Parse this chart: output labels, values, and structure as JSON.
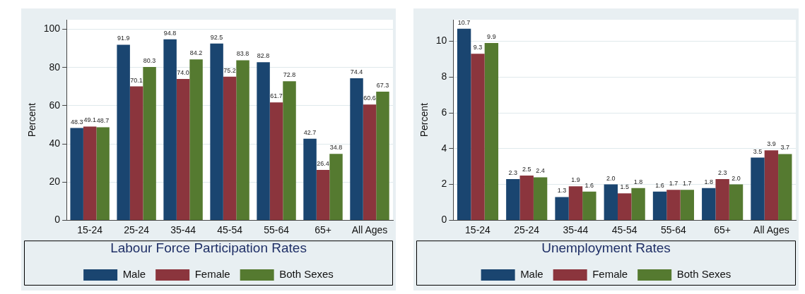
{
  "chart_data": [
    {
      "type": "bar",
      "legend_title": "Labour Force Participation Rates",
      "ylabel": "Percent",
      "categories": [
        "15-24",
        "25-24",
        "35-44",
        "45-54",
        "55-64",
        "65+",
        "All Ages"
      ],
      "ylim": [
        0,
        105
      ],
      "yticks": [
        0,
        20,
        40,
        60,
        80,
        100
      ],
      "grid": "y",
      "legend": "bottom",
      "series": [
        {
          "name": "Male",
          "color": "#1a4570",
          "values": [
            48.3,
            91.9,
            94.8,
            92.5,
            82.8,
            42.7,
            74.4
          ],
          "value_labels": [
            "48.3",
            "91.9",
            "94.8",
            "92.5",
            "82.8",
            "42.7",
            "74.4"
          ]
        },
        {
          "name": "Female",
          "color": "#8b353d",
          "values": [
            49.1,
            70.1,
            74.0,
            75.2,
            61.7,
            26.4,
            60.6
          ],
          "value_labels": [
            "49.1",
            "70.1",
            "74.0",
            "75.2",
            "61.7",
            "26.4",
            "60.6"
          ]
        },
        {
          "name": "Both Sexes",
          "color": "#557a30",
          "values": [
            48.7,
            80.3,
            84.2,
            83.8,
            72.8,
            34.8,
            67.3
          ],
          "value_labels": [
            "48.7",
            "80.3",
            "84.2",
            "83.8",
            "72.8",
            "34.8",
            "67.3"
          ]
        }
      ]
    },
    {
      "type": "bar",
      "legend_title": "Unemployment Rates",
      "ylabel": "Percent",
      "categories": [
        "15-24",
        "25-24",
        "35-44",
        "45-54",
        "55-64",
        "65+",
        "All Ages"
      ],
      "ylim": [
        0,
        11.2
      ],
      "yticks": [
        0,
        2,
        4,
        6,
        8,
        10
      ],
      "grid": "y",
      "legend": "bottom",
      "series": [
        {
          "name": "Male",
          "color": "#1a4570",
          "values": [
            10.7,
            2.3,
            1.3,
            2.0,
            1.6,
            1.8,
            3.5
          ],
          "value_labels": [
            "10.7",
            "2.3",
            "1.3",
            "2.0",
            "1.6",
            "1.8",
            "3.5"
          ]
        },
        {
          "name": "Female",
          "color": "#8b353d",
          "values": [
            9.3,
            2.5,
            1.9,
            1.5,
            1.7,
            2.3,
            3.9
          ],
          "value_labels": [
            "9.3",
            "2.5",
            "1.9",
            "1.5",
            "1.7",
            "2.3",
            "3.9"
          ]
        },
        {
          "name": "Both Sexes",
          "color": "#557a30",
          "values": [
            9.9,
            2.4,
            1.6,
            1.8,
            1.7,
            2.0,
            3.7
          ],
          "value_labels": [
            "9.9",
            "2.4",
            "1.6",
            "1.8",
            "1.7",
            "2.0",
            "3.7"
          ]
        }
      ]
    }
  ]
}
